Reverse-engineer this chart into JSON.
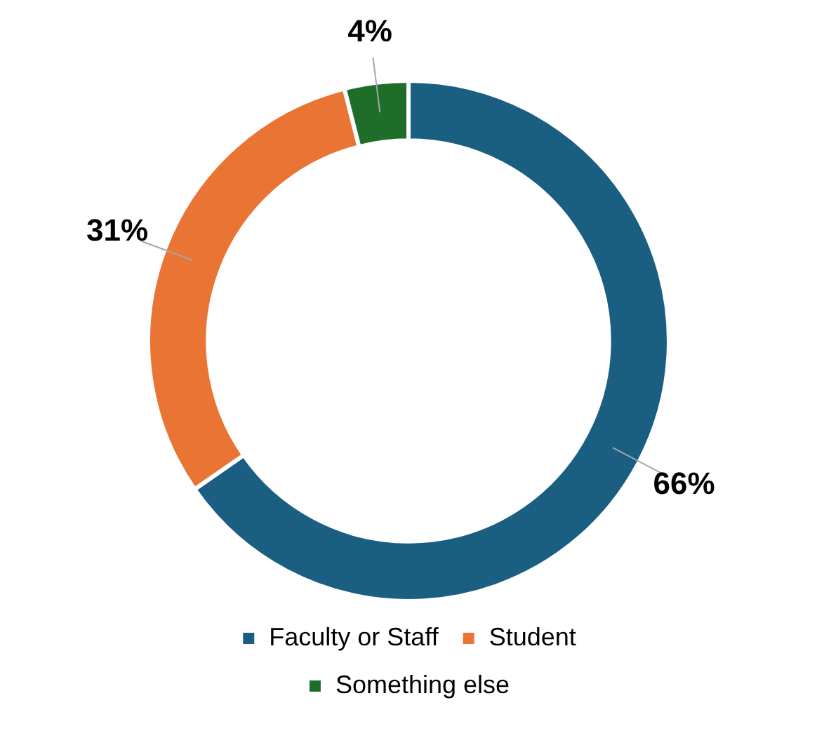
{
  "chart_data": {
    "type": "donut",
    "categories": [
      "Faculty or Staff",
      "Student",
      "Something else"
    ],
    "values": [
      66,
      31,
      4
    ],
    "colors": [
      "#1a5f82",
      "#e97434",
      "#1e6e2a"
    ],
    "value_labels": [
      "66%",
      "31%",
      "4%"
    ],
    "legend": "bottom"
  }
}
